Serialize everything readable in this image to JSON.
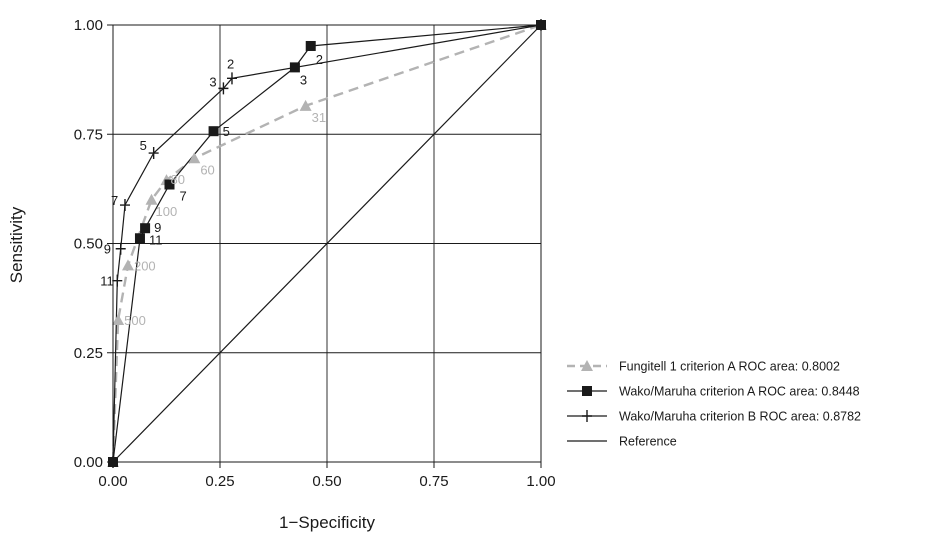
{
  "chart_data": {
    "type": "line",
    "xlabel": "1−Specificity",
    "ylabel": "Sensitivity",
    "xlim": [
      0,
      1
    ],
    "ylim": [
      0,
      1
    ],
    "x_ticks": [
      "0.00",
      "0.25",
      "0.50",
      "0.75",
      "1.00"
    ],
    "y_ticks": [
      "0.00",
      "0.25",
      "0.50",
      "0.75",
      "1.00"
    ],
    "grid": true,
    "legend_position": "right",
    "series": [
      {
        "name": "Fungitell 1 criterion A ROC area: 0.8002",
        "color": "#b3b3b3",
        "line": "dashed",
        "marker": "triangle",
        "points": [
          {
            "x": 0,
            "y": 0,
            "label": ""
          },
          {
            "x": 0.012,
            "y": 0.325,
            "label": "500"
          },
          {
            "x": 0.035,
            "y": 0.45,
            "label": "200"
          },
          {
            "x": 0.09,
            "y": 0.6,
            "label": "100"
          },
          {
            "x": 0.125,
            "y": 0.645,
            "label": "80"
          },
          {
            "x": 0.19,
            "y": 0.695,
            "label": "60"
          },
          {
            "x": 0.45,
            "y": 0.815,
            "label": "31"
          },
          {
            "x": 1,
            "y": 1,
            "label": ""
          }
        ]
      },
      {
        "name": "Wako/Maruha criterion A ROC area: 0.8448",
        "color": "#1a1a1a",
        "line": "solid",
        "marker": "square",
        "points": [
          {
            "x": 0,
            "y": 0,
            "label": ""
          },
          {
            "x": 0.063,
            "y": 0.512,
            "label": "11"
          },
          {
            "x": 0.075,
            "y": 0.535,
            "label": "9"
          },
          {
            "x": 0.132,
            "y": 0.635,
            "label": "7"
          },
          {
            "x": 0.235,
            "y": 0.757,
            "label": "5"
          },
          {
            "x": 0.425,
            "y": 0.903,
            "label": "3"
          },
          {
            "x": 0.462,
            "y": 0.952,
            "label": "2"
          },
          {
            "x": 1,
            "y": 1,
            "label": ""
          }
        ]
      },
      {
        "name": "Wako/Maruha criterion B ROC area: 0.8782",
        "color": "#1a1a1a",
        "line": "solid",
        "marker": "plus",
        "points": [
          {
            "x": 0,
            "y": 0,
            "label": ""
          },
          {
            "x": 0.01,
            "y": 0.415,
            "label": "11"
          },
          {
            "x": 0.018,
            "y": 0.488,
            "label": "9"
          },
          {
            "x": 0.028,
            "y": 0.588,
            "label": "7"
          },
          {
            "x": 0.095,
            "y": 0.707,
            "label": "5"
          },
          {
            "x": 0.258,
            "y": 0.855,
            "label": "3"
          },
          {
            "x": 0.278,
            "y": 0.878,
            "label": "2"
          },
          {
            "x": 1,
            "y": 1,
            "label": ""
          }
        ]
      },
      {
        "name": "Reference",
        "color": "#1a1a1a",
        "line": "solid",
        "marker": "none",
        "points": [
          {
            "x": 0,
            "y": 0,
            "label": ""
          },
          {
            "x": 1,
            "y": 1,
            "label": ""
          }
        ]
      }
    ]
  }
}
